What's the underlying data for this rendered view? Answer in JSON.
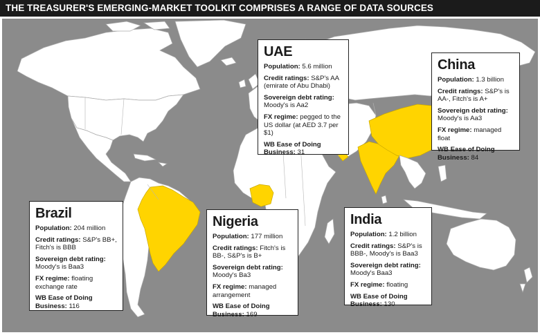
{
  "header": {
    "title": "THE TREASURER'S EMERGING-MARKET TOOLKIT COMPRISES A RANGE OF DATA SOURCES"
  },
  "colors": {
    "highlight": "#ffd400",
    "ocean": "#8b8b8b",
    "land": "#ffffff",
    "header": "#1b1b1b"
  },
  "highlighted_countries": [
    "Brazil",
    "Nigeria",
    "UAE",
    "India",
    "China"
  ],
  "countries": {
    "uae": {
      "name": "UAE",
      "population_label": "Population:",
      "population": " 5.6 million",
      "credit_label": "Credit ratings:",
      "credit": " S&P's AA (emirate of Abu Dhabi)",
      "sovereign_label": "Sovereign debt rating:",
      "sovereign": " Moody's is Aa2",
      "fx_label": "FX regime:",
      "fx": " pegged to the US dollar (at AED 3.7 per $1)",
      "wb_label": "WB Ease of Doing Business:",
      "wb": " 31"
    },
    "china": {
      "name": "China",
      "population_label": "Population:",
      "population": " 1.3 billion",
      "credit_label": "Credit ratings:",
      "credit": " S&P's is AA-, Fitch's is A+",
      "sovereign_label": "Sovereign debt rating:",
      "sovereign": " Moody's is Aa3",
      "fx_label": "FX regime:",
      "fx": " managed float",
      "wb_label": "WB Ease of Doing Business:",
      "wb": " 84"
    },
    "brazil": {
      "name": "Brazil",
      "population_label": "Population:",
      "population": " 204 million",
      "credit_label": "Credit ratings:",
      "credit": " S&P's BB+, Fitch's is BBB",
      "sovereign_label": "Sovereign debt rating:",
      "sovereign": " Moody's is Baa3",
      "fx_label": "FX regime:",
      "fx": " floating exchange rate",
      "wb_label": "WB Ease of Doing Business:",
      "wb": " 116"
    },
    "nigeria": {
      "name": "Nigeria",
      "population_label": "Population:",
      "population": " 177 million",
      "credit_label": "Credit ratings:",
      "credit": " Fitch's is BB-, S&P's is B+",
      "sovereign_label": "Sovereign debt rating:",
      "sovereign": " Moody's Ba3",
      "fx_label": "FX regime:",
      "fx": " managed arrangement",
      "wb_label": "WB Ease of Doing Business:",
      "wb": " 169"
    },
    "india": {
      "name": "India",
      "population_label": "Population:",
      "population": " 1.2 billion",
      "credit_label": "Credit ratings:",
      "credit": " S&P's is BBB-, Moody's is Baa3",
      "sovereign_label": "Sovereign debt rating:",
      "sovereign": " Moody's Baa3",
      "fx_label": "FX regime:",
      "fx": " floating",
      "wb_label": "WB Ease of Doing Business:",
      "wb": " 130"
    }
  }
}
